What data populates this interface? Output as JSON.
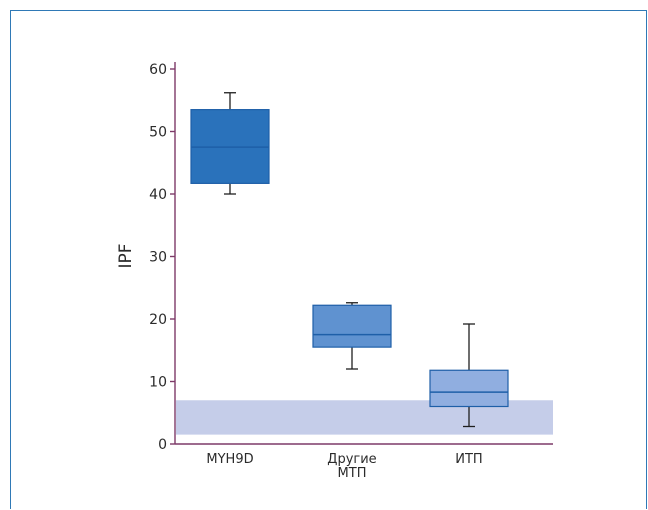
{
  "chart_data": {
    "type": "box",
    "title": "",
    "ylabel": "IPF",
    "xlabel": "",
    "ylim": [
      0,
      61
    ],
    "yticks": [
      "0",
      "10",
      "20",
      "30",
      "40",
      "50",
      "60"
    ],
    "reference_band": {
      "y_low": 1.5,
      "y_high": 7,
      "color": "#c5cde9"
    },
    "categories": [
      {
        "label_lines": [
          "MYH9D"
        ],
        "color": "#2a72bb",
        "whisker_low": 40,
        "q1": 41.7,
        "median": 47.5,
        "q3": 53.5,
        "whisker_high": 56.2
      },
      {
        "label_lines": [
          "Другие",
          "МТП"
        ],
        "color": "#5f92d0",
        "whisker_low": 12,
        "q1": 15.5,
        "median": 17.5,
        "q3": 22.2,
        "whisker_high": 22.6
      },
      {
        "label_lines": [
          "ИТП"
        ],
        "color": "#90aee0",
        "whisker_low": 2.8,
        "q1": 6,
        "median": 8.3,
        "q3": 11.8,
        "whisker_high": 19.2
      }
    ],
    "colors": {
      "axis": "#7d3a68",
      "box_stroke": "#1e5fa8",
      "whisker": "#1f1f1f"
    }
  }
}
